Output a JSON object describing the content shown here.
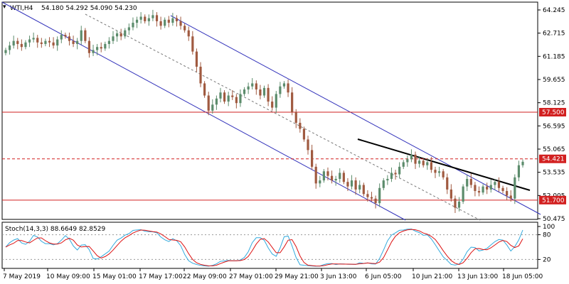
{
  "chart_data": {
    "type": "candlestick",
    "symbol_header": "WTI,H4",
    "ohlc_header": "54.180 54.292 54.090 54.230",
    "colors": {
      "up": "#5c8c6c",
      "down": "#a05a40",
      "resistance": "#d22020",
      "channel": "#3333bb",
      "stoch_main": "#33aadd",
      "stoch_signal": "#dd1111",
      "trendline": "#000000"
    },
    "price_axis": {
      "ticks": [
        64.245,
        62.715,
        61.185,
        59.655,
        58.125,
        56.595,
        55.065,
        53.535,
        52.005,
        50.475
      ],
      "tick_labels": [
        "64.245",
        "62.715",
        "61.185",
        "59.655",
        "58.125",
        "56.595",
        "55.065",
        "53.535",
        "52.005",
        "50.475"
      ],
      "ylim": [
        50.18,
        64.7
      ]
    },
    "time_labels": [
      "7 May 2019",
      "10 May 09:00",
      "15 May 01:00",
      "17 May 17:00",
      "22 May 09:00",
      "27 May 01:00",
      "29 May 21:00",
      "3 Jun 13:00",
      "6 Jun 05:00",
      "10 Jun 21:00",
      "13 Jun 13:00",
      "18 Jun 05:00"
    ],
    "candles_close": [
      61.6,
      61.9,
      62.2,
      62.0,
      61.8,
      62.1,
      62.3,
      62.4,
      62.1,
      62.0,
      62.2,
      62.1,
      61.9,
      62.3,
      62.6,
      62.5,
      62.2,
      62.0,
      62.2,
      62.9,
      62.2,
      61.4,
      61.6,
      61.8,
      61.7,
      62.0,
      62.2,
      62.5,
      62.7,
      62.5,
      62.9,
      63.1,
      63.4,
      63.6,
      63.8,
      63.5,
      63.7,
      63.9,
      63.5,
      63.2,
      63.6,
      63.4,
      63.7,
      63.5,
      63.2,
      62.9,
      62.5,
      61.5,
      60.5,
      59.4,
      58.6,
      57.6,
      58.0,
      58.4,
      58.8,
      58.2,
      58.6,
      58.5,
      58.1,
      58.7,
      59.0,
      59.2,
      59.4,
      59.0,
      58.6,
      59.1,
      58.2,
      57.8,
      58.7,
      59.2,
      59.4,
      58.8,
      57.5,
      56.8,
      56.4,
      55.7,
      55.0,
      53.9,
      52.8,
      53.0,
      53.6,
      53.3,
      53.0,
      53.1,
      53.5,
      52.9,
      52.6,
      53.0,
      52.4,
      52.7,
      52.1,
      51.9,
      51.8,
      51.5,
      52.5,
      53.0,
      53.1,
      53.5,
      53.4,
      53.9,
      54.2,
      54.4,
      54.7,
      54.1,
      54.3,
      54.0,
      54.2,
      53.7,
      53.5,
      53.6,
      53.2,
      52.4,
      51.8,
      51.2,
      51.6,
      52.6,
      53.1,
      52.7,
      52.3,
      52.2,
      52.6,
      52.4,
      52.7,
      52.9,
      52.5,
      52.3,
      52.0,
      51.8,
      53.2,
      54.0,
      54.23
    ],
    "levels": [
      {
        "label": "57.500",
        "value": 57.5,
        "style": "solid"
      },
      {
        "label": "51.700",
        "value": 51.7,
        "style": "solid"
      },
      {
        "label": "54.421",
        "value": 54.421,
        "style": "dashed"
      }
    ],
    "stoch": {
      "header": "Stoch(14,3,3) 88.6649 82.8529",
      "ticks": [
        100,
        80,
        20
      ],
      "tick_labels": [
        "100",
        "80",
        "20"
      ],
      "ylim": [
        0,
        100
      ]
    }
  }
}
